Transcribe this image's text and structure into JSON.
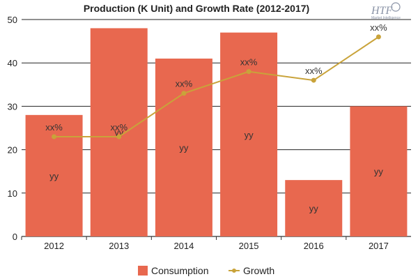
{
  "chart_data": {
    "type": "bar",
    "title": "Production (K Unit) and Growth Rate (2012-2017)",
    "categories": [
      "2012",
      "2013",
      "2014",
      "2015",
      "2016",
      "2017"
    ],
    "ylim": [
      0,
      50
    ],
    "yticks": [
      0,
      10,
      20,
      30,
      40,
      50
    ],
    "grid": true,
    "legend_position": "bottom",
    "series": [
      {
        "name": "Consumption",
        "type": "bar",
        "color": "#e8684f",
        "values": [
          28,
          48,
          41,
          47,
          13,
          30
        ],
        "labels": [
          "yy",
          "yy",
          "yy",
          "yy",
          "yy",
          "yy"
        ]
      },
      {
        "name": "Growth",
        "type": "line",
        "color": "#c9a33a",
        "values": [
          23,
          23,
          33,
          38,
          36,
          46
        ],
        "labels": [
          "xx%",
          "xx%",
          "xx%",
          "xx%",
          "xx%",
          "xx%"
        ]
      }
    ]
  },
  "logo": {
    "text": "HTF",
    "subtext": "Market Intelligence",
    "color": "#8a93a6"
  }
}
